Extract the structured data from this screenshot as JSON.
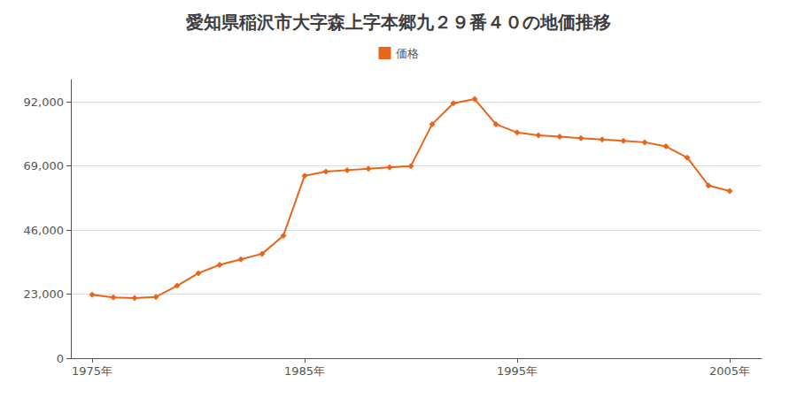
{
  "chart_data": {
    "type": "line",
    "title": "愛知県稲沢市大字森上字本郷九２９番４０の地価推移",
    "x": [
      1975,
      1976,
      1977,
      1978,
      1979,
      1980,
      1981,
      1982,
      1983,
      1984,
      1985,
      1986,
      1987,
      1988,
      1989,
      1990,
      1991,
      1992,
      1993,
      1994,
      1995,
      1996,
      1997,
      1998,
      1999,
      2000,
      2001,
      2002,
      2003,
      2004,
      2005
    ],
    "series": [
      {
        "name": "価格",
        "color": "#E8651A",
        "marker": "diamond",
        "values": [
          22800,
          21800,
          21600,
          22000,
          26000,
          30500,
          33500,
          35500,
          37500,
          44000,
          65500,
          67000,
          67500,
          68000,
          68500,
          69000,
          84000,
          91500,
          93000,
          84000,
          81000,
          80000,
          79500,
          79000,
          78500,
          78000,
          77500,
          76000,
          72000,
          62000,
          60000
        ]
      }
    ],
    "xlim": [
      1974,
      2006.5
    ],
    "xticks": [
      {
        "value": 1975,
        "label": "1975年"
      },
      {
        "value": 1985,
        "label": "1985年"
      },
      {
        "value": 1995,
        "label": "1995年"
      },
      {
        "value": 2005,
        "label": "2005年"
      }
    ],
    "ylim": [
      0,
      100000
    ],
    "yticks": [
      0,
      {
        "value": 23000,
        "label": "23,000"
      },
      {
        "value": 46000,
        "label": "46,000"
      },
      {
        "value": 69000,
        "label": "69,000"
      },
      {
        "value": 92000,
        "label": "92,000"
      }
    ],
    "grid": "y",
    "legend": "top"
  }
}
